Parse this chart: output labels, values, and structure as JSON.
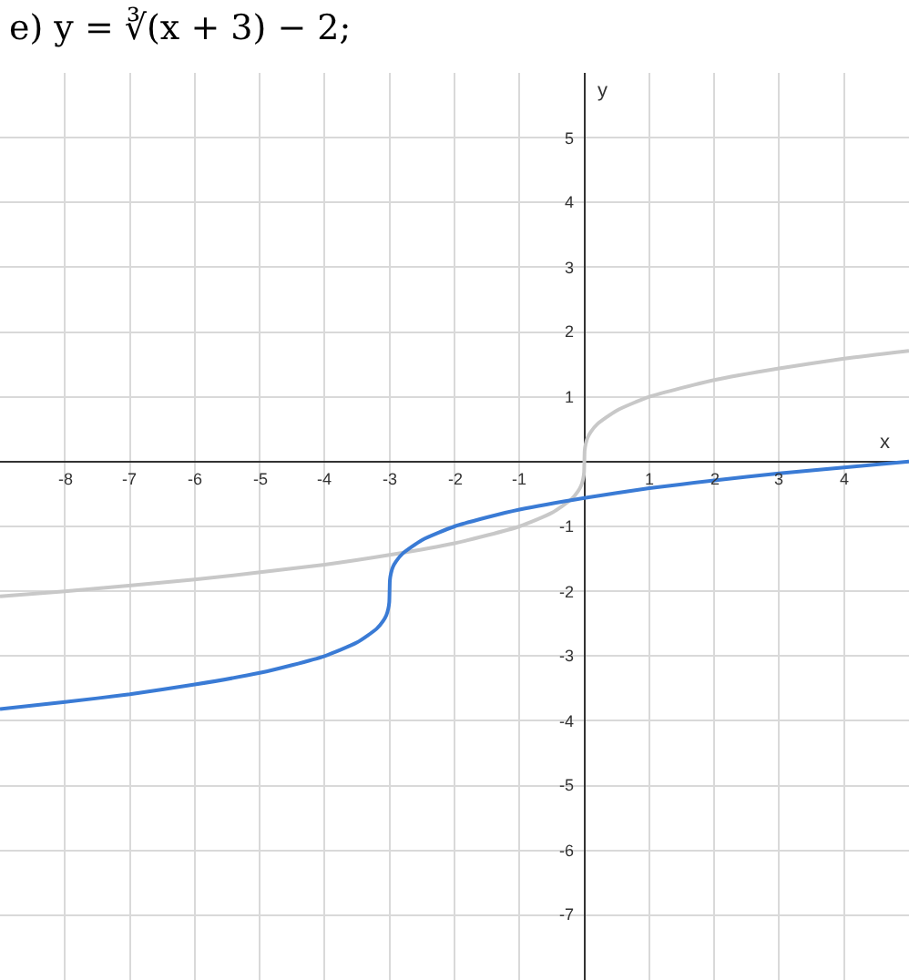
{
  "chart_data": {
    "type": "line",
    "title": "e) y = ∛(x + 3) − 2;",
    "xlabel": "x",
    "ylabel": "y",
    "xlim": [
      -9,
      5
    ],
    "ylim": [
      -8,
      6
    ],
    "xticks": [
      -8,
      -7,
      -6,
      -5,
      -4,
      -3,
      -2,
      -1,
      1,
      2,
      3,
      4
    ],
    "yticks": [
      -7,
      -6,
      -5,
      -4,
      -3,
      -2,
      -1,
      1,
      2,
      3,
      4,
      5
    ],
    "grid": true,
    "legend": false,
    "marker": "none",
    "line_style": "solid",
    "series": [
      {
        "color": "#c8c8c8",
        "x": [
          -9,
          -8,
          -6,
          -4,
          -3,
          -2,
          -1,
          -0.5,
          -0.2,
          -0.1,
          -0.05,
          -0.02,
          -0.005,
          0,
          0.005,
          0.02,
          0.05,
          0.1,
          0.2,
          0.5,
          1,
          2,
          3,
          4,
          5
        ],
        "values": [
          -2.08,
          -2,
          -1.82,
          -1.59,
          -1.44,
          -1.26,
          -1,
          -0.79,
          -0.58,
          -0.46,
          -0.37,
          -0.27,
          -0.17,
          0,
          0.17,
          0.27,
          0.37,
          0.46,
          0.58,
          0.79,
          1,
          1.26,
          1.44,
          1.59,
          1.71
        ]
      },
      {
        "color": "#3a7bd5",
        "x": [
          -9,
          -8,
          -7,
          -6,
          -5,
          -4.5,
          -4,
          -3.5,
          -3.2,
          -3.1,
          -3.05,
          -3.02,
          -3.005,
          -3,
          -2.995,
          -2.98,
          -2.95,
          -2.9,
          -2.8,
          -2.5,
          -2,
          -1.5,
          -1,
          0,
          1,
          2,
          3,
          4,
          5
        ],
        "values": [
          -3.82,
          -3.71,
          -3.59,
          -3.44,
          -3.26,
          -3.14,
          -3,
          -2.79,
          -2.58,
          -2.46,
          -2.37,
          -2.27,
          -2.17,
          -2,
          -1.83,
          -1.73,
          -1.63,
          -1.54,
          -1.42,
          -1.21,
          -1,
          -0.86,
          -0.74,
          -0.56,
          -0.41,
          -0.29,
          -0.18,
          -0.09,
          0
        ]
      }
    ]
  }
}
